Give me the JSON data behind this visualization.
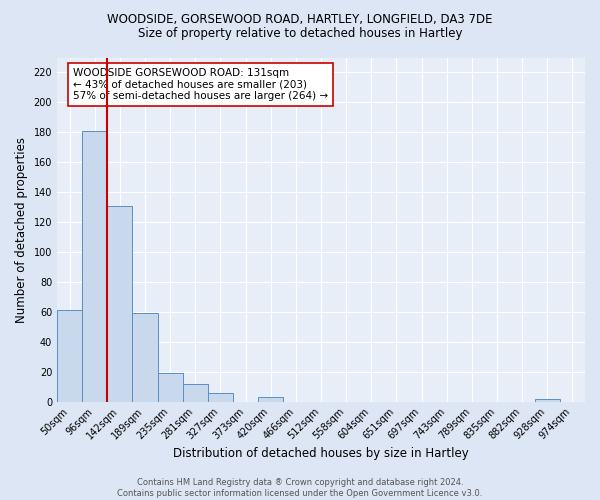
{
  "title1": "WOODSIDE, GORSEWOOD ROAD, HARTLEY, LONGFIELD, DA3 7DE",
  "title2": "Size of property relative to detached houses in Hartley",
  "xlabel": "Distribution of detached houses by size in Hartley",
  "ylabel": "Number of detached properties",
  "bin_labels": [
    "50sqm",
    "96sqm",
    "142sqm",
    "189sqm",
    "235sqm",
    "281sqm",
    "327sqm",
    "373sqm",
    "420sqm",
    "466sqm",
    "512sqm",
    "558sqm",
    "604sqm",
    "651sqm",
    "697sqm",
    "743sqm",
    "789sqm",
    "835sqm",
    "882sqm",
    "928sqm",
    "974sqm"
  ],
  "bar_heights": [
    61,
    181,
    131,
    59,
    19,
    12,
    6,
    0,
    3,
    0,
    0,
    0,
    0,
    0,
    0,
    0,
    0,
    0,
    0,
    2,
    0
  ],
  "bar_color": "#c9d9ed",
  "bar_edge_color": "#5b8ec4",
  "red_line_x": 1.5,
  "red_line_color": "#cc0000",
  "annotation_text": "WOODSIDE GORSEWOOD ROAD: 131sqm\n← 43% of detached houses are smaller (203)\n57% of semi-detached houses are larger (264) →",
  "annotation_box_color": "#ffffff",
  "annotation_box_edge_color": "#cc0000",
  "ylim": [
    0,
    230
  ],
  "yticks": [
    0,
    20,
    40,
    60,
    80,
    100,
    120,
    140,
    160,
    180,
    200,
    220
  ],
  "footer_text": "Contains HM Land Registry data ® Crown copyright and database right 2024.\nContains public sector information licensed under the Open Government Licence v3.0.",
  "background_color": "#dce6f5",
  "plot_bg_color": "#e8eef8",
  "grid_color": "#ffffff",
  "title1_fontsize": 8.5,
  "title2_fontsize": 8.5,
  "axis_label_fontsize": 8.5,
  "tick_fontsize": 7,
  "annotation_fontsize": 7.5,
  "footer_fontsize": 6
}
